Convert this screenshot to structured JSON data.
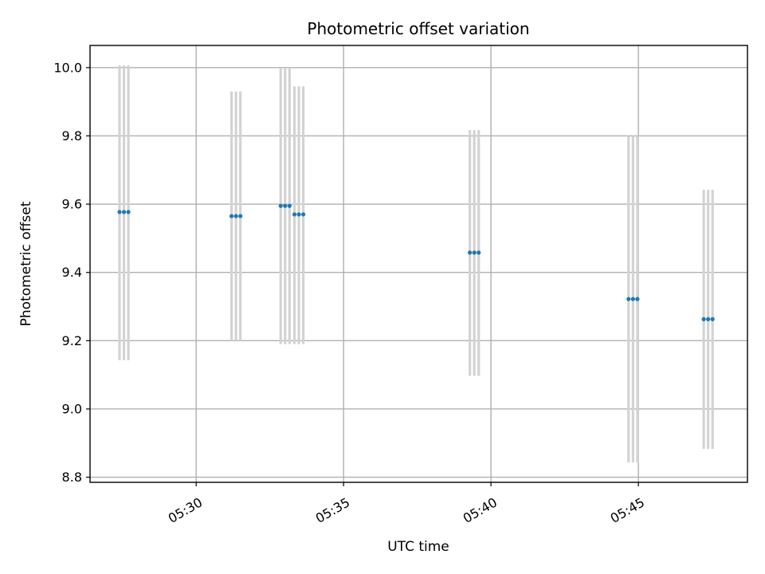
{
  "chart_data": {
    "type": "scatter",
    "title": "Photometric offset variation",
    "xlabel": "UTC time",
    "ylabel": "Photometric offset",
    "xlim": [
      "05:26:24",
      "05:48:42"
    ],
    "ylim": [
      8.785,
      10.065
    ],
    "xticks": [
      "05:30",
      "05:35",
      "05:40",
      "05:45"
    ],
    "yticks": [
      8.8,
      9.0,
      9.2,
      9.4,
      9.6,
      9.8,
      10.0
    ],
    "grid": true,
    "point_color": "#1f77b4",
    "errorbar_color": "#d3d3d3",
    "points": [
      {
        "x": "05:27:24",
        "y": 9.577,
        "yerr_low": 9.143,
        "yerr_high": 10.007
      },
      {
        "x": "05:27:33",
        "y": 9.577,
        "yerr_low": 9.143,
        "yerr_high": 10.007
      },
      {
        "x": "05:27:42",
        "y": 9.577,
        "yerr_low": 9.143,
        "yerr_high": 10.007
      },
      {
        "x": "05:31:12",
        "y": 9.565,
        "yerr_low": 9.2,
        "yerr_high": 9.93
      },
      {
        "x": "05:31:21",
        "y": 9.565,
        "yerr_low": 9.2,
        "yerr_high": 9.93
      },
      {
        "x": "05:31:30",
        "y": 9.565,
        "yerr_low": 9.2,
        "yerr_high": 9.93
      },
      {
        "x": "05:32:52",
        "y": 9.595,
        "yerr_low": 9.19,
        "yerr_high": 10.0
      },
      {
        "x": "05:33:01",
        "y": 9.595,
        "yerr_low": 9.19,
        "yerr_high": 10.0
      },
      {
        "x": "05:33:10",
        "y": 9.595,
        "yerr_low": 9.19,
        "yerr_high": 10.0
      },
      {
        "x": "05:33:20",
        "y": 9.57,
        "yerr_low": 9.19,
        "yerr_high": 9.945
      },
      {
        "x": "05:33:29",
        "y": 9.57,
        "yerr_low": 9.19,
        "yerr_high": 9.945
      },
      {
        "x": "05:33:38",
        "y": 9.57,
        "yerr_low": 9.19,
        "yerr_high": 9.945
      },
      {
        "x": "05:39:17",
        "y": 9.458,
        "yerr_low": 9.097,
        "yerr_high": 9.817
      },
      {
        "x": "05:39:26",
        "y": 9.458,
        "yerr_low": 9.097,
        "yerr_high": 9.817
      },
      {
        "x": "05:39:35",
        "y": 9.458,
        "yerr_low": 9.097,
        "yerr_high": 9.817
      },
      {
        "x": "05:44:40",
        "y": 9.322,
        "yerr_low": 8.843,
        "yerr_high": 9.8
      },
      {
        "x": "05:44:49",
        "y": 9.322,
        "yerr_low": 8.843,
        "yerr_high": 9.8
      },
      {
        "x": "05:44:58",
        "y": 9.322,
        "yerr_low": 8.843,
        "yerr_high": 9.8
      },
      {
        "x": "05:47:13",
        "y": 9.263,
        "yerr_low": 8.883,
        "yerr_high": 9.642
      },
      {
        "x": "05:47:22",
        "y": 9.263,
        "yerr_low": 8.883,
        "yerr_high": 9.642
      },
      {
        "x": "05:47:31",
        "y": 9.263,
        "yerr_low": 8.883,
        "yerr_high": 9.642
      }
    ]
  }
}
